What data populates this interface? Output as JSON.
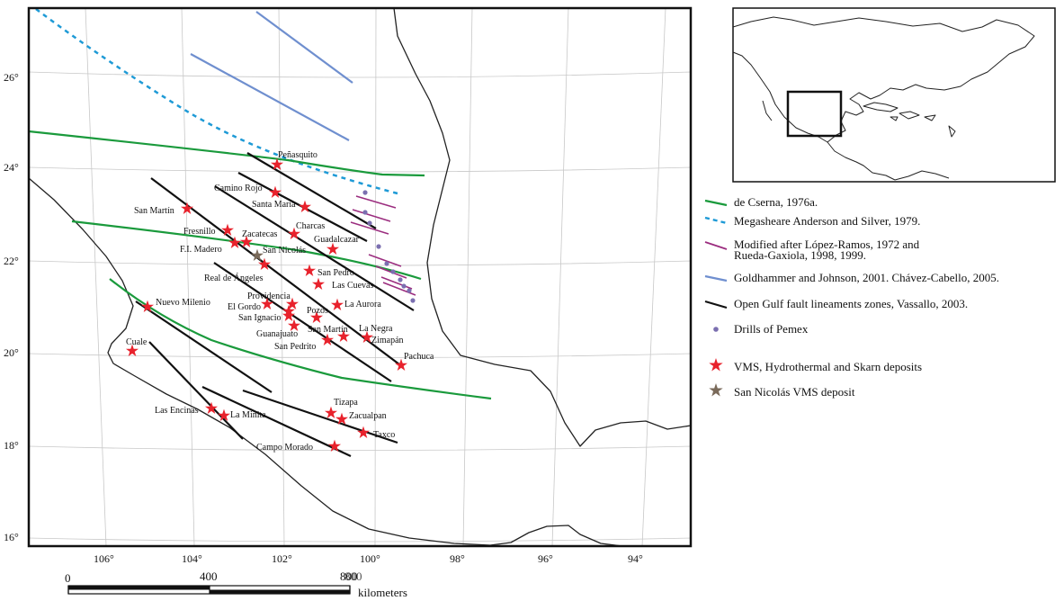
{
  "lat_labels": [
    "26°",
    "24°",
    "22°",
    "20°",
    "18°",
    "16°"
  ],
  "lon_labels": [
    "106°",
    "104°",
    "102°",
    "100°",
    "98°",
    "96°",
    "94°"
  ],
  "scale": {
    "ticks": [
      "0",
      "400",
      "800"
    ],
    "overlap_label": "800",
    "unit": "kilometers"
  },
  "legend": [
    {
      "symbol": "green-line",
      "color": "#1a9a3c",
      "text": "de Cserna, 1976a."
    },
    {
      "symbol": "dashed-cyan-line",
      "color": "#1e9ad6",
      "text": "Megasheare  Anderson and Silver, 1979."
    },
    {
      "symbol": "purple-line",
      "color": "#9b2d7f",
      "text": "Modified after López-Ramos, 1972 and",
      "text2": "Rueda-Gaxiola, 1998, 1999."
    },
    {
      "symbol": "blue-line",
      "color": "#6f8fcf",
      "text": "Goldhammer and Johnson, 2001. Chávez-Cabello, 2005."
    },
    {
      "symbol": "black-line",
      "color": "#111111",
      "text": "Open Gulf fault lineaments zones, Vassallo, 2003."
    },
    {
      "symbol": "purple-dot",
      "color": "#7b6fb0",
      "text": "Drills of Pemex"
    },
    {
      "symbol": "red-star",
      "color": "#e8222c",
      "text": "VMS, Hydrothermal and Skarn deposits"
    },
    {
      "symbol": "brown-star",
      "color": "#7a6a5a",
      "text": "San Nicolás VMS deposit"
    }
  ],
  "deposits": [
    {
      "name": "Peñasquito",
      "type": "red"
    },
    {
      "name": "Camino Rojo",
      "type": "red"
    },
    {
      "name": "Santa María",
      "type": "red"
    },
    {
      "name": "San Martín",
      "type": "red"
    },
    {
      "name": "Charcas",
      "type": "red"
    },
    {
      "name": "Fresnillo",
      "type": "red"
    },
    {
      "name": "Zacatecas",
      "type": "red"
    },
    {
      "name": "Guadalcazar",
      "type": "red"
    },
    {
      "name": "F.I. Madero",
      "type": "red"
    },
    {
      "name": "San Nicolás",
      "type": "brown"
    },
    {
      "name": "Real de Ángeles",
      "type": "red"
    },
    {
      "name": "San Pedro",
      "type": "red"
    },
    {
      "name": "Las Cuevas",
      "type": "red"
    },
    {
      "name": "Providencia",
      "type": "red"
    },
    {
      "name": "La Aurora",
      "type": "red"
    },
    {
      "name": "El Gordo",
      "type": "red"
    },
    {
      "name": "Pozos",
      "type": "red"
    },
    {
      "name": "San Ignacio",
      "type": "red"
    },
    {
      "name": "La Negra",
      "type": "red"
    },
    {
      "name": "Guanajuato",
      "type": "red"
    },
    {
      "name": "San Martín",
      "type": "red"
    },
    {
      "name": "Zimapán",
      "type": "red"
    },
    {
      "name": "San Pedrito",
      "type": "red"
    },
    {
      "name": "Pachuca",
      "type": "red"
    },
    {
      "name": "Nuevo Milenio",
      "type": "red"
    },
    {
      "name": "Cuale",
      "type": "red"
    },
    {
      "name": "Tizapa",
      "type": "red"
    },
    {
      "name": "Las Encinas",
      "type": "red"
    },
    {
      "name": "La Minita",
      "type": "red"
    },
    {
      "name": "Zacualpan",
      "type": "red"
    },
    {
      "name": "Taxco",
      "type": "red"
    },
    {
      "name": "Campo Morado",
      "type": "red"
    }
  ]
}
